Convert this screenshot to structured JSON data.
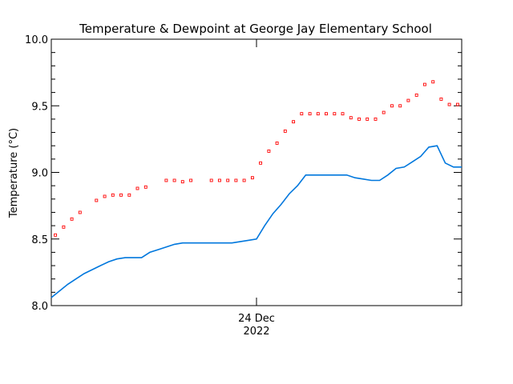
{
  "chart_data": {
    "type": "line",
    "title": "Temperature & Dewpoint at George Jay Elementary School",
    "ylabel": "Temperature (°C)",
    "xlabel": "",
    "ylim": [
      8.0,
      10.0
    ],
    "yticks": [
      "8.0",
      "8.5",
      "9.0",
      "9.5",
      "10.0"
    ],
    "xtick_label_line1": "24 Dec",
    "xtick_label_line2": "2022",
    "grid": false,
    "series": [
      {
        "color": "#ff0000",
        "style": "points",
        "x": [
          0.5,
          1.5,
          2.5,
          3.5,
          5.5,
          6.5,
          7.5,
          8.5,
          9.5,
          10.5,
          11.5,
          14,
          15,
          16,
          17,
          19.5,
          20.5,
          21.5,
          22.5,
          23.5,
          24.5,
          25.5,
          26.5,
          27.5,
          28.5,
          29.5,
          30.5,
          31.5,
          32.5,
          33.5,
          34.5,
          35.5,
          36.5,
          37.5,
          38.5,
          39.5,
          40.5,
          41.5,
          42.5,
          43.5,
          44.5,
          45.5,
          46.5,
          47.5,
          48.5,
          49.5
        ],
        "y": [
          8.53,
          8.59,
          8.65,
          8.7,
          8.79,
          8.82,
          8.83,
          8.83,
          8.83,
          8.88,
          8.89,
          8.94,
          8.94,
          8.93,
          8.94,
          8.94,
          8.94,
          8.94,
          8.94,
          8.94,
          8.96,
          9.07,
          9.16,
          9.22,
          9.31,
          9.38,
          9.44,
          9.44,
          9.44,
          9.44,
          9.44,
          9.44,
          9.41,
          9.4,
          9.4,
          9.4,
          9.45,
          9.5,
          9.5,
          9.54,
          9.58,
          9.66,
          9.68,
          9.55,
          9.51,
          9.51
        ]
      },
      {
        "color": "#0077dd",
        "style": "line",
        "x": [
          0,
          1,
          2,
          3,
          4,
          5,
          6,
          7,
          8,
          9,
          10,
          11,
          12,
          13,
          14,
          15,
          16,
          17,
          18,
          19,
          20,
          21,
          22,
          23,
          24,
          25,
          26,
          27,
          28,
          29,
          30,
          31,
          32,
          33,
          34,
          35,
          36,
          37,
          38,
          39,
          40,
          41,
          42,
          43,
          44,
          45,
          46,
          47,
          48,
          49,
          50
        ],
        "y": [
          8.06,
          8.11,
          8.16,
          8.2,
          8.24,
          8.27,
          8.3,
          8.33,
          8.35,
          8.36,
          8.36,
          8.36,
          8.4,
          8.42,
          8.44,
          8.46,
          8.47,
          8.47,
          8.47,
          8.47,
          8.47,
          8.47,
          8.47,
          8.48,
          8.49,
          8.5,
          8.6,
          8.69,
          8.76,
          8.84,
          8.9,
          8.98,
          8.98,
          8.98,
          8.98,
          8.98,
          8.98,
          8.96,
          8.95,
          8.94,
          8.94,
          8.98,
          9.03,
          9.04,
          9.08,
          9.12,
          9.19,
          9.2,
          9.07,
          9.04,
          9.04
        ]
      }
    ]
  }
}
